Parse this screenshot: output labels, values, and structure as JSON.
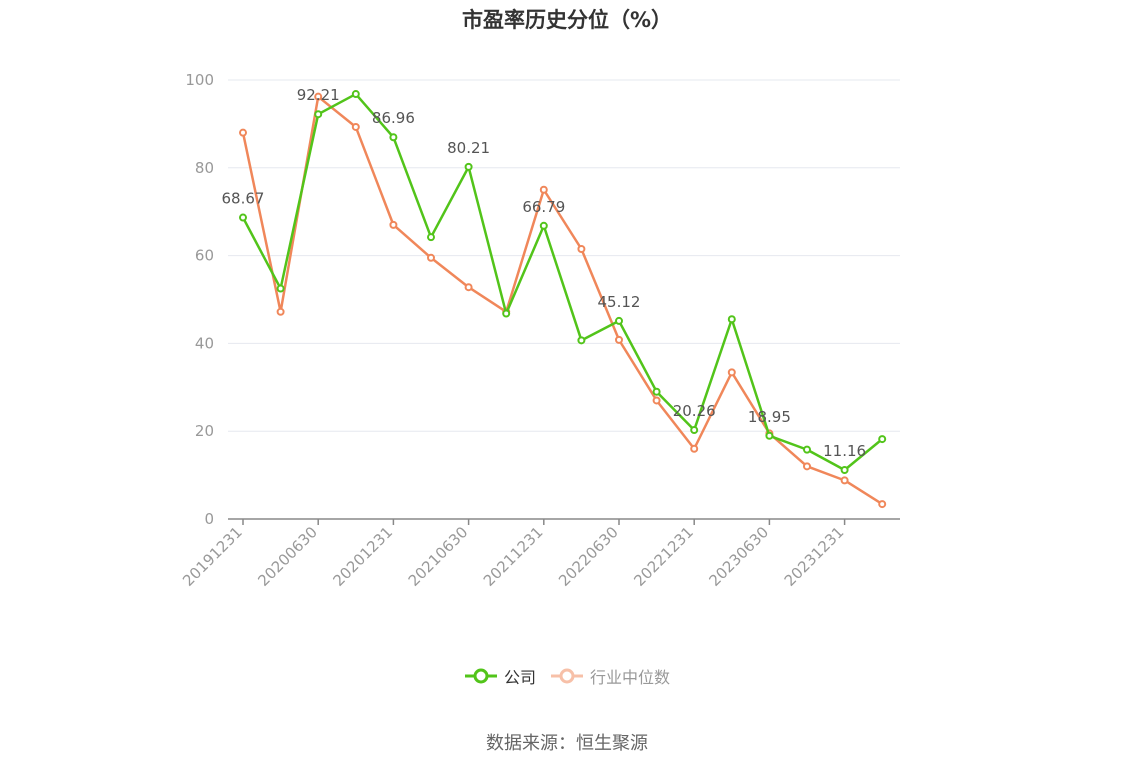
{
  "chart_data": {
    "type": "line",
    "title": "市盈率历史分位（%）",
    "x_tick_labels": [
      "20191231",
      "20200630",
      "20201231",
      "20210630",
      "20211231",
      "20220630",
      "20221231",
      "20230630",
      "20231231"
    ],
    "ylim": [
      0,
      100
    ],
    "y_ticks": [
      0,
      20,
      40,
      60,
      80,
      100
    ],
    "grid": true,
    "legend_position": "bottom",
    "series": [
      {
        "name": "公司",
        "color": "#52c41a",
        "values": [
          68.67,
          52.5,
          92.21,
          96.8,
          86.96,
          64.2,
          80.21,
          46.8,
          66.79,
          40.7,
          45.12,
          29.0,
          20.26,
          45.5,
          18.95,
          15.8,
          11.16,
          18.2
        ]
      },
      {
        "name": "行业中位数",
        "color": "#f0875a",
        "values": [
          88.0,
          47.2,
          96.2,
          89.3,
          67.0,
          59.5,
          52.8,
          47.2,
          75.0,
          61.5,
          40.8,
          27.0,
          16.0,
          33.4,
          19.5,
          12.0,
          8.8,
          3.4
        ]
      }
    ],
    "data_labels": [
      {
        "index": 0,
        "text": "68.67"
      },
      {
        "index": 2,
        "text": "92.21"
      },
      {
        "index": 4,
        "text": "86.96"
      },
      {
        "index": 6,
        "text": "80.21"
      },
      {
        "index": 8,
        "text": "66.79"
      },
      {
        "index": 10,
        "text": "45.12"
      },
      {
        "index": 12,
        "text": "20.26"
      },
      {
        "index": 14,
        "text": "18.95"
      },
      {
        "index": 16,
        "text": "11.16"
      }
    ]
  },
  "source_text": "数据来源：恒生聚源"
}
